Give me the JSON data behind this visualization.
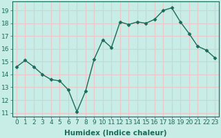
{
  "x": [
    0,
    1,
    2,
    3,
    4,
    5,
    6,
    7,
    8,
    9,
    10,
    11,
    12,
    13,
    14,
    15,
    16,
    17,
    18,
    19,
    20,
    21,
    22,
    23
  ],
  "y": [
    14.6,
    15.1,
    14.6,
    14.0,
    13.6,
    13.5,
    12.8,
    11.1,
    12.7,
    15.2,
    16.7,
    16.1,
    18.1,
    17.9,
    18.1,
    18.0,
    18.3,
    19.0,
    19.2,
    18.1,
    17.2,
    16.2,
    15.9,
    15.3
  ],
  "line_color": "#1a6b5a",
  "marker_color": "#1a6b5a",
  "bg_color": "#c8ece6",
  "grid_color": "#e8c8c8",
  "xlabel": "Humidex (Indice chaleur)",
  "ylim": [
    10.7,
    19.7
  ],
  "xlim": [
    -0.5,
    23.5
  ],
  "yticks": [
    11,
    12,
    13,
    14,
    15,
    16,
    17,
    18,
    19
  ],
  "xticks": [
    0,
    1,
    2,
    3,
    4,
    5,
    6,
    7,
    8,
    9,
    10,
    11,
    12,
    13,
    14,
    15,
    16,
    17,
    18,
    19,
    20,
    21,
    22,
    23
  ],
  "tick_fontsize": 6.5,
  "xlabel_fontsize": 7.5,
  "marker_size": 2.5,
  "line_width": 1.0
}
